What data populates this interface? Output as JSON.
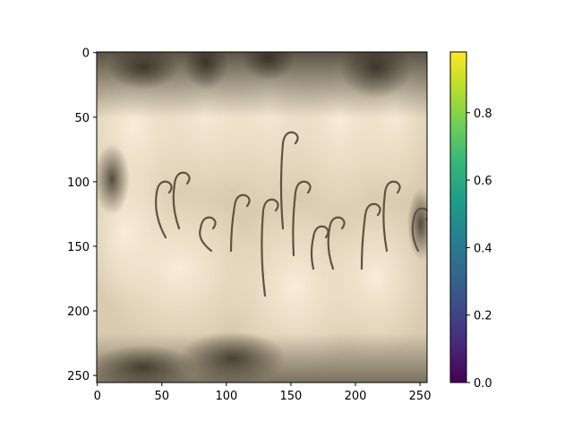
{
  "chart_data": {
    "type": "heatmap",
    "title": "",
    "xlabel": "",
    "ylabel": "",
    "image": {
      "description_palette": [
        "#f5e9d3",
        "#e6d8bd",
        "#cdbf9f",
        "#9f9277",
        "#5e543f",
        "#2d281d"
      ],
      "x_range": [
        0,
        255
      ],
      "y_range": [
        255,
        0
      ]
    },
    "x_ticks": [
      0,
      50,
      100,
      150,
      200,
      250
    ],
    "x_tick_labels": [
      "0",
      "50",
      "100",
      "150",
      "200",
      "250"
    ],
    "y_ticks": [
      0,
      50,
      100,
      150,
      200,
      250
    ],
    "y_tick_labels": [
      "0",
      "50",
      "100",
      "150",
      "200",
      "250"
    ],
    "colorbar": {
      "colormap": "viridis",
      "range": [
        0.0,
        0.98
      ],
      "ticks": [
        0.0,
        0.2,
        0.4,
        0.6,
        0.8
      ],
      "tick_labels": [
        "0.0",
        "0.2",
        "0.4",
        "0.6",
        "0.8"
      ],
      "colors": [
        "#440154",
        "#482878",
        "#3e4989",
        "#31688e",
        "#26828e",
        "#1f9e89",
        "#35b779",
        "#6ece58",
        "#b5de2b",
        "#fde725"
      ]
    }
  }
}
